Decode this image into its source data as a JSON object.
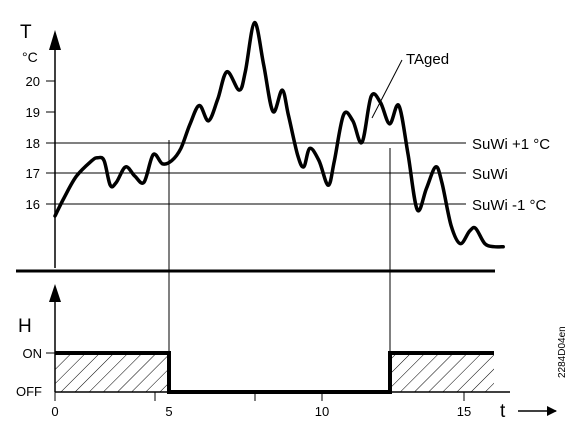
{
  "top_panel": {
    "y_axis_name": "T",
    "y_unit": "°C",
    "y_ticks": [
      "16",
      "17",
      "18",
      "19",
      "20"
    ],
    "curve_label": "TAged",
    "reference_lines": [
      {
        "label": "SuWi +1 °C",
        "value": 18
      },
      {
        "label": "SuWi",
        "value": 17
      },
      {
        "label": "SuWi -1 °C",
        "value": 16
      }
    ]
  },
  "bottom_panel": {
    "y_axis_name": "H",
    "state_labels": {
      "on": "ON",
      "off": "OFF"
    }
  },
  "x_axis": {
    "name": "t",
    "ticks": [
      "0",
      "5",
      "10",
      "15"
    ]
  },
  "figure_code": "2284D04en",
  "chart_data": {
    "type": "line",
    "x": [
      0,
      0.3,
      0.7,
      1.2,
      1.4,
      1.6,
      1.8,
      2.0,
      2.3,
      2.6,
      2.9,
      3.2,
      3.5,
      3.8,
      4.1,
      4.4,
      4.7,
      5.0,
      5.3,
      5.6,
      6.0,
      6.2,
      6.5,
      6.8,
      7.1,
      7.4,
      7.6,
      7.9,
      8.1,
      8.3,
      8.6,
      8.9,
      9.1,
      9.4,
      9.7,
      10.0,
      10.3,
      10.6,
      10.9,
      11.2,
      11.5,
      11.8,
      12.1,
      12.4,
      12.6,
      12.9,
      13.2,
      13.5,
      13.7,
      14.0,
      14.3,
      14.6
    ],
    "series": [
      {
        "name": "TAged",
        "values": [
          15.6,
          16.2,
          16.9,
          17.4,
          17.5,
          17.4,
          16.6,
          16.7,
          17.2,
          16.9,
          16.7,
          17.6,
          17.3,
          17.4,
          17.8,
          18.6,
          19.2,
          18.7,
          19.4,
          20.3,
          19.7,
          20.3,
          21.9,
          20.5,
          19.0,
          19.7,
          18.9,
          17.6,
          17.2,
          17.8,
          17.4,
          16.6,
          17.4,
          18.9,
          18.7,
          18.0,
          19.5,
          19.3,
          18.6,
          19.2,
          17.6,
          15.8,
          16.5,
          17.2,
          16.7,
          15.3,
          14.7,
          15.1,
          15.2,
          14.7,
          14.6,
          14.6
        ]
      }
    ],
    "switch_points": [
      4.8,
      12.2
    ],
    "h_states": [
      {
        "from": 0,
        "to": 4.8,
        "state": "ON"
      },
      {
        "from": 4.8,
        "to": 12.2,
        "state": "OFF"
      },
      {
        "from": 12.2,
        "to": 15.4,
        "state": "ON"
      }
    ],
    "x_ticks": [
      0,
      5,
      10,
      15
    ],
    "y_ticks": [
      16,
      17,
      18,
      19,
      20
    ],
    "xlabel": "t",
    "ylabel": "T"
  }
}
